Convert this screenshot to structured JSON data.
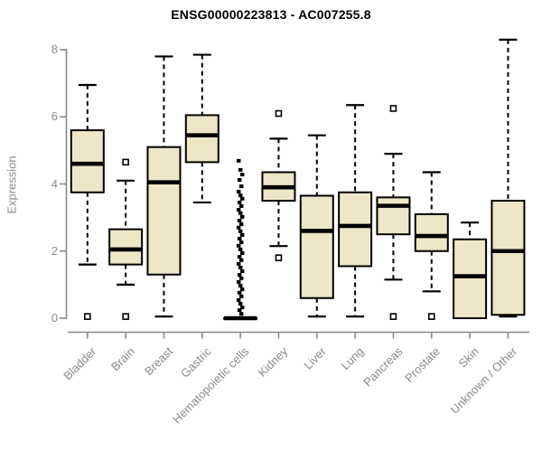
{
  "title": "ENSG00000223813 - AC007255.8",
  "chart_data": {
    "type": "boxplot",
    "title": "ENSG00000223813 - AC007255.8",
    "ylabel": "Expression",
    "xlabel": "",
    "ylim": [
      0,
      8.4
    ],
    "yticks": [
      0,
      2,
      4,
      6,
      8
    ],
    "grid": false,
    "legend": "none",
    "box_fill": "#EDE7C7",
    "box_stroke": "#000000",
    "median_color": "#000000",
    "axis_color": "#888888",
    "label_color": "#8a8a8a",
    "categories": [
      "Bladder",
      "Brain",
      "Breast",
      "Gastric",
      "Hematopoietic cells",
      "Kidney",
      "Liver",
      "Lung",
      "Pancreas",
      "Prostate",
      "Skin",
      "Unknown / Other"
    ],
    "series": [
      {
        "name": "Bladder",
        "low": 1.6,
        "q1": 3.75,
        "median": 4.6,
        "q3": 5.6,
        "high": 6.95,
        "outliers": [
          0.05
        ]
      },
      {
        "name": "Brain",
        "low": 1.0,
        "q1": 1.6,
        "median": 2.05,
        "q3": 2.65,
        "high": 4.1,
        "outliers": [
          4.65,
          0.05
        ]
      },
      {
        "name": "Breast",
        "low": 0.05,
        "q1": 1.3,
        "median": 4.05,
        "q3": 5.1,
        "high": 7.8,
        "outliers": []
      },
      {
        "name": "Gastric",
        "low": 3.45,
        "q1": 4.65,
        "median": 5.45,
        "q3": 6.05,
        "high": 7.85,
        "outliers": []
      },
      {
        "name": "Hematopoietic cells",
        "low": 0,
        "q1": 0,
        "median": 0,
        "q3": 0,
        "high": 0,
        "outlier_style": "filled",
        "outliers": [
          4.69,
          4.42,
          4.28,
          4.12,
          3.93,
          3.77,
          3.66,
          3.56,
          3.45,
          3.34,
          3.23,
          3.13,
          3.02,
          2.91,
          2.8,
          2.7,
          2.59,
          2.48,
          2.37,
          2.26,
          2.16,
          2.05,
          1.94,
          1.83,
          1.73,
          1.62,
          1.51,
          1.4,
          1.29,
          1.19,
          1.08,
          0.97,
          0.86,
          0.76,
          0.65,
          0.54,
          0.43,
          0.32,
          0.24,
          0.13
        ]
      },
      {
        "name": "Kidney",
        "low": 2.15,
        "q1": 3.5,
        "median": 3.9,
        "q3": 4.35,
        "high": 5.35,
        "outliers": [
          6.1,
          1.8
        ]
      },
      {
        "name": "Liver",
        "low": 0.05,
        "q1": 0.6,
        "median": 2.6,
        "q3": 3.65,
        "high": 5.45,
        "outliers": []
      },
      {
        "name": "Lung",
        "low": 0.05,
        "q1": 1.55,
        "median": 2.75,
        "q3": 3.75,
        "high": 6.35,
        "outliers": []
      },
      {
        "name": "Pancreas",
        "low": 1.15,
        "q1": 2.5,
        "median": 3.35,
        "q3": 3.6,
        "high": 4.9,
        "outliers": [
          6.25,
          0.05
        ]
      },
      {
        "name": "Prostate",
        "low": 0.8,
        "q1": 2.0,
        "median": 2.45,
        "q3": 3.1,
        "high": 4.35,
        "outliers": [
          0.05
        ]
      },
      {
        "name": "Skin",
        "low": 0.0,
        "q1": 0.0,
        "median": 1.25,
        "q3": 2.35,
        "high": 2.85,
        "outliers": []
      },
      {
        "name": "Unknown / Other",
        "low": 0.05,
        "q1": 0.1,
        "median": 2.0,
        "q3": 3.5,
        "high": 8.3,
        "outliers": []
      }
    ]
  }
}
